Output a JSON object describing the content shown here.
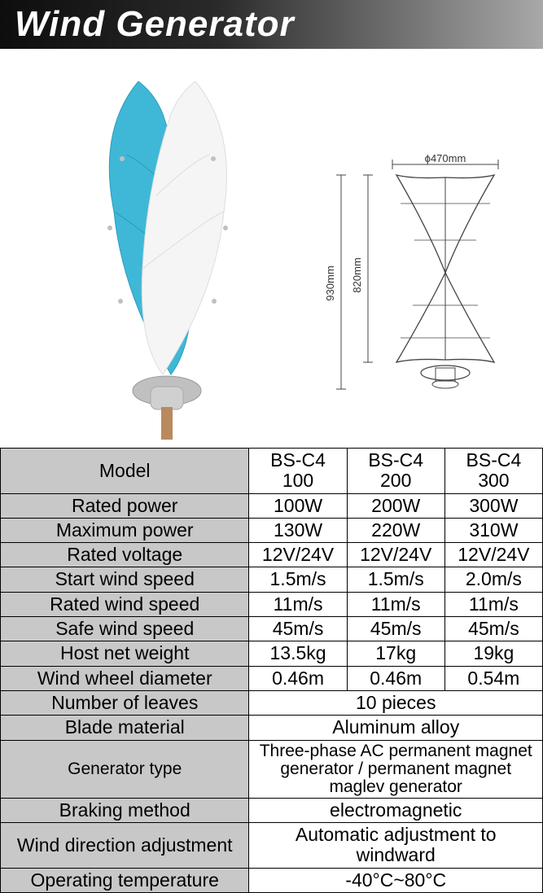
{
  "header": {
    "title": "Wind Generator"
  },
  "dimensions": {
    "diameter_label": "ϕ470mm",
    "height_label": "820mm",
    "total_height_label": "930mm"
  },
  "table": {
    "label_bg": "#c8c8c8",
    "val_bg": "#ffffff",
    "border_color": "#000000",
    "rows": [
      {
        "label": "Model",
        "cells": [
          "BS-C4 100",
          "BS-C4 200",
          "BS-C4 300"
        ]
      },
      {
        "label": "Rated power",
        "cells": [
          "100W",
          "200W",
          "300W"
        ]
      },
      {
        "label": "Maximum power",
        "cells": [
          "130W",
          "220W",
          "310W"
        ]
      },
      {
        "label": "Rated voltage",
        "cells": [
          "12V/24V",
          "12V/24V",
          "12V/24V"
        ]
      },
      {
        "label": "Start wind speed",
        "cells": [
          "1.5m/s",
          "1.5m/s",
          "2.0m/s"
        ]
      },
      {
        "label": "Rated wind speed",
        "cells": [
          "11m/s",
          "11m/s",
          "11m/s"
        ]
      },
      {
        "label": "Safe wind speed",
        "cells": [
          "45m/s",
          "45m/s",
          "45m/s"
        ]
      },
      {
        "label": "Host net weight",
        "cells": [
          "13.5kg",
          "17kg",
          "19kg"
        ]
      },
      {
        "label": "Wind wheel diameter",
        "cells": [
          "0.46m",
          "0.46m",
          "0.54m"
        ]
      },
      {
        "label": "Number of leaves",
        "merged": "10 pieces"
      },
      {
        "label": "Blade material",
        "merged": "Aluminum alloy"
      },
      {
        "label": "Generator type",
        "merged": "Three-phase AC permanent magnet generator / permanent magnet maglev generator",
        "cls": "generator-row"
      },
      {
        "label": "Braking method",
        "merged": "electromagnetic"
      },
      {
        "label": "Wind direction adjustment",
        "merged": "Automatic adjustment to windward"
      },
      {
        "label": "Operating temperature",
        "merged": "-40°C~80°C"
      }
    ]
  },
  "colors": {
    "blade_blue": "#3fb8d8",
    "blade_white": "#f5f5f5",
    "hub_gray": "#b0b0b0",
    "pole_tan": "#b88a5e",
    "schematic_stroke": "#444444"
  }
}
